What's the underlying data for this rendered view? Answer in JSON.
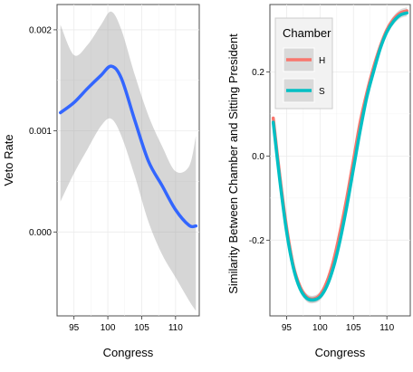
{
  "chart_data": [
    {
      "type": "line",
      "xlabel": "Congress",
      "ylabel": "Veto Rate",
      "xlim": [
        92.5,
        113.5
      ],
      "ylim": [
        -0.00083,
        0.00225
      ],
      "xticks": [
        95,
        100,
        105,
        110
      ],
      "yticks": [
        0.0,
        0.001,
        0.002
      ],
      "ytick_labels": [
        "0.000",
        "0.001",
        "0.002"
      ],
      "grid": true,
      "colors": {
        "line": "#3366FF",
        "ribbon": "#999999"
      },
      "series": [
        {
          "x": [
            93,
            95,
            97,
            99,
            100.5,
            102,
            104,
            106,
            108,
            110,
            112,
            113
          ],
          "values": [
            0.00118,
            0.00128,
            0.00142,
            0.00155,
            0.00164,
            0.00152,
            0.0011,
            0.0007,
            0.00046,
            0.00022,
            6.5e-05,
            6e-05
          ],
          "lower": [
            0.0003,
            0.00058,
            0.00082,
            0.00105,
            0.00112,
            0.00095,
            0.00055,
            0.0001,
            -0.00022,
            -0.00045,
            -0.00068,
            -0.00078
          ],
          "upper": [
            0.00205,
            0.00175,
            0.00185,
            0.00205,
            0.00218,
            0.002,
            0.00155,
            0.00115,
            0.00085,
            0.0006,
            0.00065,
            0.00095
          ]
        }
      ]
    },
    {
      "type": "line",
      "xlabel": "Congress",
      "ylabel": "Similarity Between Chamber and Sitting President",
      "xlim": [
        92.5,
        113.5
      ],
      "ylim": [
        -0.38,
        0.36
      ],
      "xticks": [
        95,
        100,
        105,
        110
      ],
      "yticks": [
        -0.2,
        0.0,
        0.2
      ],
      "ytick_labels": [
        "-0.2",
        "0.0",
        "0.2"
      ],
      "grid": true,
      "legend": {
        "title": "Chamber",
        "position": "top-left"
      },
      "series": [
        {
          "name": "H",
          "color": "#F8766D",
          "x": [
            93,
            94,
            95,
            96,
            97,
            98,
            99,
            100,
            101,
            102,
            103,
            104,
            105,
            106,
            107,
            108,
            109,
            110,
            111,
            112,
            113
          ],
          "values": [
            0.09,
            -0.05,
            -0.17,
            -0.26,
            -0.31,
            -0.335,
            -0.34,
            -0.33,
            -0.3,
            -0.25,
            -0.18,
            -0.1,
            -0.01,
            0.08,
            0.15,
            0.21,
            0.26,
            0.3,
            0.325,
            0.34,
            0.345
          ]
        },
        {
          "name": "S",
          "color": "#00BFC4",
          "x": [
            93,
            94,
            95,
            96,
            97,
            98,
            99,
            100,
            101,
            102,
            103,
            104,
            105,
            106,
            107,
            108,
            109,
            110,
            111,
            112,
            113
          ],
          "values": [
            0.08,
            -0.06,
            -0.18,
            -0.265,
            -0.315,
            -0.338,
            -0.342,
            -0.335,
            -0.31,
            -0.265,
            -0.2,
            -0.12,
            -0.03,
            0.06,
            0.14,
            0.2,
            0.255,
            0.295,
            0.32,
            0.335,
            0.34
          ]
        }
      ]
    }
  ]
}
